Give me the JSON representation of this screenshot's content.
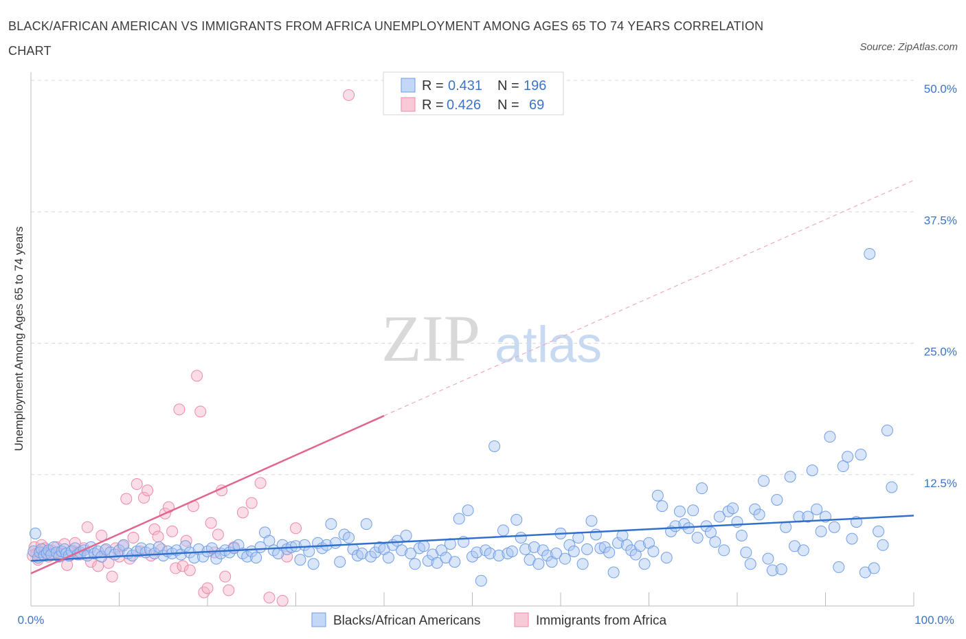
{
  "title": "BLACK/AFRICAN AMERICAN VS IMMIGRANTS FROM AFRICA UNEMPLOYMENT AMONG AGES 65 TO 74 YEARS CORRELATION CHART",
  "source": "Source: ZipAtlas.com",
  "watermark": {
    "zip": "ZIP",
    "atlas": "atlas"
  },
  "colors": {
    "blue": "#6f9ee8",
    "blue_fill": "rgba(170,198,242,0.45)",
    "blue_line": "#3070cc",
    "pink": "#ee88a8",
    "pink_fill": "rgba(245,180,200,0.45)",
    "pink_line": "#e06690",
    "axis_text": "#3b74c8",
    "grid": "#d8d8d8"
  },
  "chart_data": {
    "type": "scatter",
    "xlabel": "",
    "ylabel": "Unemployment Among Ages 65 to 74 years",
    "xlim": [
      0,
      100
    ],
    "ylim": [
      0,
      50
    ],
    "x_tick_labels": [
      "0.0%",
      "100.0%"
    ],
    "y_ticks": [
      12.5,
      25.0,
      37.5,
      50.0
    ],
    "y_tick_labels": [
      "12.5%",
      "25.0%",
      "37.5%",
      "50.0%"
    ],
    "grid": true,
    "legend_top": [
      {
        "r_label": "R =",
        "r": "0.431",
        "n_label": "N =",
        "n": "196"
      },
      {
        "r_label": "R =",
        "r": "0.426",
        "n_label": "N =",
        "n": "69"
      }
    ],
    "series": [
      {
        "name": "Blacks/African Americans",
        "trend": {
          "x0": 0,
          "y0": 4.3,
          "x1": 100,
          "y1": 8.6
        },
        "points": [
          [
            0.3,
            5.2
          ],
          [
            0.5,
            6.9
          ],
          [
            0.8,
            4.6
          ],
          [
            1.0,
            5.1
          ],
          [
            1.2,
            5.4
          ],
          [
            1.5,
            4.8
          ],
          [
            1.8,
            5.0
          ],
          [
            2.0,
            5.3
          ],
          [
            2.3,
            4.9
          ],
          [
            2.6,
            5.6
          ],
          [
            2.9,
            5.1
          ],
          [
            3.2,
            4.7
          ],
          [
            3.5,
            5.2
          ],
          [
            3.8,
            5.4
          ],
          [
            4.0,
            5.0
          ],
          [
            4.3,
            4.8
          ],
          [
            4.6,
            5.2
          ],
          [
            5.0,
            5.5
          ],
          [
            5.3,
            4.9
          ],
          [
            5.6,
            5.1
          ],
          [
            6.0,
            5.3
          ],
          [
            6.4,
            4.8
          ],
          [
            6.8,
            5.6
          ],
          [
            7.2,
            5.0
          ],
          [
            7.6,
            5.2
          ],
          [
            8.0,
            4.7
          ],
          [
            8.5,
            5.4
          ],
          [
            9.0,
            5.1
          ],
          [
            9.5,
            4.9
          ],
          [
            10.0,
            5.3
          ],
          [
            10.5,
            5.8
          ],
          [
            11.0,
            5.0
          ],
          [
            11.5,
            4.8
          ],
          [
            12.0,
            5.2
          ],
          [
            12.5,
            5.5
          ],
          [
            13.0,
            5.1
          ],
          [
            13.5,
            5.4
          ],
          [
            14.0,
            5.0
          ],
          [
            14.5,
            5.6
          ],
          [
            15.0,
            4.8
          ],
          [
            15.5,
            5.2
          ],
          [
            16.0,
            5.0
          ],
          [
            16.5,
            5.3
          ],
          [
            17.0,
            4.9
          ],
          [
            17.5,
            5.7
          ],
          [
            18.0,
            5.1
          ],
          [
            18.5,
            4.6
          ],
          [
            19.0,
            5.4
          ],
          [
            19.5,
            4.7
          ],
          [
            20.0,
            5.2
          ],
          [
            20.5,
            5.5
          ],
          [
            21.0,
            4.5
          ],
          [
            21.5,
            5.0
          ],
          [
            22.0,
            5.3
          ],
          [
            22.5,
            5.1
          ],
          [
            23.0,
            5.5
          ],
          [
            23.5,
            5.8
          ],
          [
            24.0,
            5.0
          ],
          [
            24.5,
            4.7
          ],
          [
            25.0,
            5.2
          ],
          [
            25.5,
            4.6
          ],
          [
            26.0,
            5.6
          ],
          [
            26.5,
            7.0
          ],
          [
            27.0,
            6.2
          ],
          [
            27.5,
            5.3
          ],
          [
            28.0,
            5.0
          ],
          [
            28.5,
            5.8
          ],
          [
            29.0,
            5.4
          ],
          [
            29.5,
            5.6
          ],
          [
            30.0,
            5.7
          ],
          [
            30.5,
            4.4
          ],
          [
            31.0,
            5.8
          ],
          [
            31.5,
            5.2
          ],
          [
            32.0,
            4.0
          ],
          [
            32.5,
            6.0
          ],
          [
            33.0,
            5.5
          ],
          [
            33.5,
            5.8
          ],
          [
            34.0,
            7.8
          ],
          [
            34.5,
            6.0
          ],
          [
            35.0,
            4.2
          ],
          [
            35.5,
            6.8
          ],
          [
            36.0,
            6.5
          ],
          [
            36.5,
            5.4
          ],
          [
            37.0,
            4.8
          ],
          [
            37.5,
            5.0
          ],
          [
            38.0,
            7.8
          ],
          [
            38.5,
            4.7
          ],
          [
            39.0,
            5.1
          ],
          [
            39.5,
            5.6
          ],
          [
            40.0,
            5.4
          ],
          [
            40.5,
            4.6
          ],
          [
            41.0,
            5.8
          ],
          [
            41.5,
            6.2
          ],
          [
            42.0,
            5.3
          ],
          [
            42.5,
            6.7
          ],
          [
            43.0,
            5.0
          ],
          [
            43.5,
            4.0
          ],
          [
            44.0,
            5.5
          ],
          [
            44.5,
            5.7
          ],
          [
            45.0,
            4.3
          ],
          [
            45.5,
            4.9
          ],
          [
            46.0,
            4.1
          ],
          [
            46.5,
            5.3
          ],
          [
            47.0,
            4.6
          ],
          [
            47.5,
            5.9
          ],
          [
            48.0,
            4.2
          ],
          [
            48.5,
            8.3
          ],
          [
            49.0,
            6.1
          ],
          [
            49.5,
            9.1
          ],
          [
            50.0,
            4.7
          ],
          [
            50.5,
            5.1
          ],
          [
            51.0,
            2.4
          ],
          [
            51.5,
            5.3
          ],
          [
            52.0,
            5.0
          ],
          [
            52.5,
            15.2
          ],
          [
            53.0,
            4.8
          ],
          [
            53.5,
            7.2
          ],
          [
            54.0,
            5.0
          ],
          [
            54.5,
            5.2
          ],
          [
            55.0,
            8.2
          ],
          [
            55.5,
            6.5
          ],
          [
            56.0,
            5.4
          ],
          [
            56.5,
            4.4
          ],
          [
            57.0,
            5.6
          ],
          [
            57.5,
            4.0
          ],
          [
            58.0,
            5.3
          ],
          [
            58.5,
            4.8
          ],
          [
            59.0,
            4.2
          ],
          [
            59.5,
            5.0
          ],
          [
            60.0,
            6.9
          ],
          [
            60.5,
            4.5
          ],
          [
            61.0,
            5.8
          ],
          [
            61.5,
            5.2
          ],
          [
            62.0,
            6.5
          ],
          [
            62.5,
            4.0
          ],
          [
            63.0,
            5.4
          ],
          [
            63.5,
            8.1
          ],
          [
            64.0,
            6.8
          ],
          [
            64.5,
            5.5
          ],
          [
            65.0,
            5.6
          ],
          [
            65.5,
            5.1
          ],
          [
            66.0,
            3.2
          ],
          [
            66.5,
            6.0
          ],
          [
            67.0,
            6.7
          ],
          [
            67.5,
            5.8
          ],
          [
            68.0,
            5.3
          ],
          [
            68.5,
            4.9
          ],
          [
            69.0,
            5.7
          ],
          [
            69.5,
            4.0
          ],
          [
            70.0,
            6.0
          ],
          [
            70.5,
            5.2
          ],
          [
            71.0,
            10.5
          ],
          [
            71.5,
            9.5
          ],
          [
            72.0,
            4.6
          ],
          [
            72.5,
            7.1
          ],
          [
            73.0,
            7.6
          ],
          [
            73.5,
            9.0
          ],
          [
            74.0,
            7.8
          ],
          [
            74.5,
            7.4
          ],
          [
            75.0,
            9.1
          ],
          [
            75.5,
            6.5
          ],
          [
            76.0,
            11.2
          ],
          [
            76.5,
            7.6
          ],
          [
            77.0,
            7.0
          ],
          [
            77.5,
            6.1
          ],
          [
            78.0,
            8.5
          ],
          [
            78.5,
            5.3
          ],
          [
            79.0,
            9.0
          ],
          [
            79.5,
            9.3
          ],
          [
            80.0,
            8.0
          ],
          [
            80.5,
            6.7
          ],
          [
            81.0,
            5.1
          ],
          [
            81.5,
            4.0
          ],
          [
            82.0,
            9.2
          ],
          [
            82.5,
            8.7
          ],
          [
            83.0,
            11.9
          ],
          [
            83.5,
            4.5
          ],
          [
            84.0,
            3.4
          ],
          [
            84.5,
            10.1
          ],
          [
            85.0,
            3.5
          ],
          [
            85.5,
            7.5
          ],
          [
            86.0,
            12.3
          ],
          [
            86.5,
            5.7
          ],
          [
            87.0,
            8.5
          ],
          [
            87.5,
            5.3
          ],
          [
            88.0,
            8.5
          ],
          [
            88.5,
            12.9
          ],
          [
            89.0,
            9.2
          ],
          [
            89.5,
            7.1
          ],
          [
            90.0,
            8.5
          ],
          [
            90.5,
            16.1
          ],
          [
            91.0,
            7.5
          ],
          [
            91.5,
            3.7
          ],
          [
            92.0,
            13.3
          ],
          [
            92.5,
            14.2
          ],
          [
            93.0,
            6.4
          ],
          [
            93.5,
            8.0
          ],
          [
            94.0,
            14.4
          ],
          [
            94.5,
            3.2
          ],
          [
            95.0,
            33.5
          ],
          [
            95.5,
            3.6
          ],
          [
            96.0,
            7.1
          ],
          [
            96.5,
            5.8
          ],
          [
            97.0,
            16.7
          ],
          [
            97.5,
            11.3
          ]
        ]
      },
      {
        "name": "Immigrants from Africa",
        "trend": {
          "x0": 0,
          "y0": 3.1,
          "x1": 40,
          "y1": 18.1
        },
        "trend_ext": {
          "x0": 40,
          "y0": 18.1,
          "x1": 100,
          "y1": 40.5
        },
        "points": [
          [
            0.2,
            4.8
          ],
          [
            0.4,
            5.6
          ],
          [
            0.6,
            5.0
          ],
          [
            0.8,
            4.4
          ],
          [
            1.0,
            5.2
          ],
          [
            1.2,
            5.8
          ],
          [
            1.4,
            4.9
          ],
          [
            1.6,
            5.5
          ],
          [
            1.8,
            5.1
          ],
          [
            2.0,
            4.7
          ],
          [
            2.3,
            5.3
          ],
          [
            2.6,
            5.0
          ],
          [
            2.9,
            5.6
          ],
          [
            3.2,
            4.8
          ],
          [
            3.5,
            5.2
          ],
          [
            3.8,
            5.9
          ],
          [
            4.1,
            3.9
          ],
          [
            4.4,
            4.8
          ],
          [
            4.7,
            5.3
          ],
          [
            5.0,
            6.0
          ],
          [
            5.3,
            5.1
          ],
          [
            5.6,
            4.9
          ],
          [
            6.0,
            5.5
          ],
          [
            6.4,
            7.5
          ],
          [
            6.8,
            4.2
          ],
          [
            7.2,
            5.0
          ],
          [
            7.6,
            3.8
          ],
          [
            8.0,
            6.7
          ],
          [
            8.4,
            5.3
          ],
          [
            8.8,
            4.1
          ],
          [
            9.2,
            2.8
          ],
          [
            9.6,
            5.5
          ],
          [
            10.0,
            4.7
          ],
          [
            10.4,
            5.7
          ],
          [
            10.8,
            10.2
          ],
          [
            11.2,
            4.5
          ],
          [
            11.6,
            6.5
          ],
          [
            12.0,
            11.6
          ],
          [
            12.4,
            5.2
          ],
          [
            12.8,
            10.3
          ],
          [
            13.2,
            11.0
          ],
          [
            13.6,
            4.8
          ],
          [
            14.0,
            7.3
          ],
          [
            14.4,
            6.6
          ],
          [
            14.8,
            5.4
          ],
          [
            15.2,
            8.8
          ],
          [
            15.6,
            9.4
          ],
          [
            16.0,
            7.1
          ],
          [
            16.4,
            3.6
          ],
          [
            16.8,
            18.7
          ],
          [
            17.2,
            3.8
          ],
          [
            17.6,
            6.2
          ],
          [
            18.0,
            3.4
          ],
          [
            18.4,
            9.5
          ],
          [
            18.8,
            21.9
          ],
          [
            19.2,
            18.5
          ],
          [
            19.6,
            1.3
          ],
          [
            20.0,
            1.7
          ],
          [
            20.4,
            7.9
          ],
          [
            20.8,
            5.1
          ],
          [
            21.2,
            6.8
          ],
          [
            21.6,
            11.0
          ],
          [
            22.0,
            2.8
          ],
          [
            22.4,
            1.5
          ],
          [
            23.0,
            5.6
          ],
          [
            24.0,
            8.9
          ],
          [
            25.0,
            9.8
          ],
          [
            26.0,
            11.7
          ],
          [
            27.0,
            0.8
          ],
          [
            28.5,
            0.5
          ],
          [
            29.0,
            4.7
          ],
          [
            30.0,
            7.4
          ],
          [
            36.0,
            48.6
          ]
        ]
      }
    ]
  }
}
